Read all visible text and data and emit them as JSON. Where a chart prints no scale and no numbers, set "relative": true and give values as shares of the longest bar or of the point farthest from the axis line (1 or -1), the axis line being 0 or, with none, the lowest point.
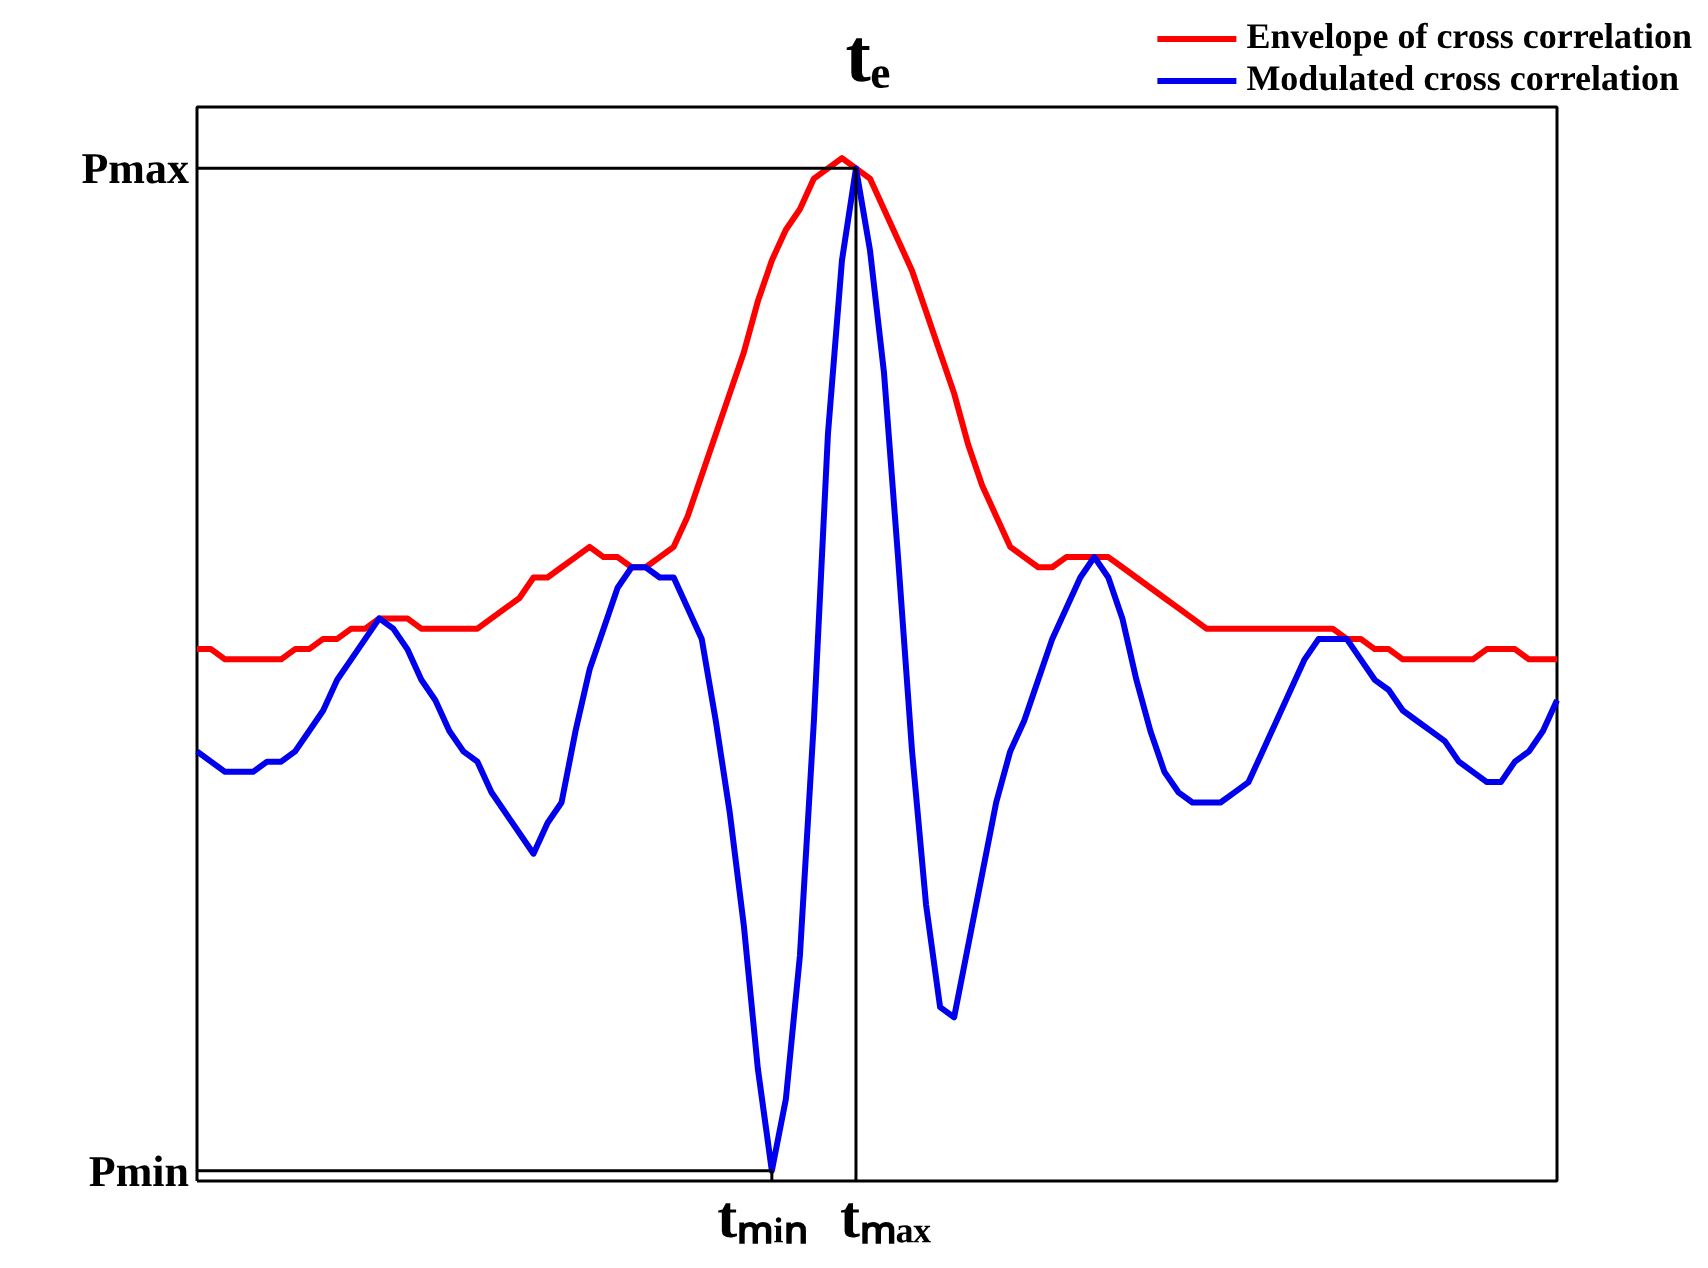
{
  "chart_data": {
    "type": "line",
    "relative": true,
    "legend": "top right",
    "grid": false,
    "marker": "none",
    "line_style": "solid",
    "categories": [
      null,
      null,
      null,
      null,
      null,
      null,
      null,
      null,
      null,
      null,
      null,
      null,
      null,
      null,
      null,
      null,
      null,
      null,
      null,
      null,
      null,
      null,
      null,
      null,
      null,
      null,
      null,
      null,
      null,
      null,
      null,
      null,
      null,
      null,
      null,
      null,
      null,
      null,
      null,
      null,
      null,
      null,
      null,
      null,
      null,
      null,
      null,
      null,
      null,
      null,
      null,
      null,
      null,
      null,
      null,
      null,
      null,
      null,
      null,
      null,
      null,
      null,
      null,
      null,
      null,
      null,
      null,
      null,
      null,
      null,
      null,
      null,
      null,
      null,
      null,
      null,
      null,
      null,
      null,
      null,
      null,
      null,
      null,
      null,
      null,
      null,
      null,
      null,
      null,
      null,
      null,
      null,
      null,
      null,
      null,
      null,
      null,
      null
    ],
    "series": [
      {
        "name": "Envelope of cross correlation",
        "color": "#ff0000",
        "values": [
          0.52,
          0.52,
          0.51,
          0.51,
          0.51,
          0.51,
          0.51,
          0.52,
          0.52,
          0.53,
          0.53,
          0.54,
          0.54,
          0.55,
          0.55,
          0.55,
          0.54,
          0.54,
          0.54,
          0.54,
          0.54,
          0.55,
          0.56,
          0.57,
          0.59,
          0.59,
          0.6,
          0.61,
          0.62,
          0.61,
          0.61,
          0.6,
          0.6,
          0.61,
          0.62,
          0.65,
          0.69,
          0.73,
          0.77,
          0.81,
          0.86,
          0.9,
          0.93,
          0.95,
          0.98,
          0.99,
          1.0,
          0.99,
          0.98,
          0.95,
          0.92,
          0.89,
          0.85,
          0.81,
          0.77,
          0.72,
          0.68,
          0.65,
          0.62,
          0.61,
          0.6,
          0.6,
          0.61,
          0.61,
          0.61,
          0.61,
          0.6,
          0.59,
          0.58,
          0.57,
          0.56,
          0.55,
          0.54,
          0.54,
          0.54,
          0.54,
          0.54,
          0.54,
          0.54,
          0.54,
          0.54,
          0.54,
          0.53,
          0.53,
          0.52,
          0.52,
          0.51,
          0.51,
          0.51,
          0.51,
          0.51,
          0.51,
          0.52,
          0.52,
          0.52,
          0.51,
          0.51,
          0.51
        ]
      },
      {
        "name": "Modulated cross correlation",
        "color": "#0000ee",
        "values": [
          0.42,
          0.41,
          0.4,
          0.4,
          0.4,
          0.41,
          0.41,
          0.42,
          0.44,
          0.46,
          0.49,
          0.51,
          0.53,
          0.55,
          0.54,
          0.52,
          0.49,
          0.47,
          0.44,
          0.42,
          0.41,
          0.38,
          0.36,
          0.34,
          0.32,
          0.35,
          0.37,
          0.44,
          0.5,
          0.54,
          0.58,
          0.6,
          0.6,
          0.59,
          0.59,
          0.56,
          0.53,
          0.45,
          0.36,
          0.25,
          0.11,
          0.01,
          0.08,
          0.22,
          0.45,
          0.73,
          0.9,
          0.99,
          0.91,
          0.79,
          0.61,
          0.42,
          0.27,
          0.17,
          0.16,
          0.23,
          0.3,
          0.37,
          0.42,
          0.45,
          0.49,
          0.53,
          0.56,
          0.59,
          0.61,
          0.59,
          0.55,
          0.49,
          0.44,
          0.4,
          0.38,
          0.37,
          0.37,
          0.37,
          0.38,
          0.39,
          0.42,
          0.45,
          0.48,
          0.51,
          0.53,
          0.53,
          0.53,
          0.51,
          0.49,
          0.48,
          0.46,
          0.45,
          0.44,
          0.43,
          0.41,
          0.4,
          0.39,
          0.39,
          0.41,
          0.42,
          0.44,
          0.47
        ]
      }
    ],
    "ref_lines": [
      {
        "axis": "y",
        "value": 0.99,
        "label": "Pmax",
        "color": "#000000"
      },
      {
        "axis": "y",
        "value": 0.01,
        "label": "Pmin",
        "color": "#000000"
      }
    ],
    "annotations": [
      "tₘᵢₙ",
      "tₘₐₓ",
      "tₑ"
    ]
  }
}
